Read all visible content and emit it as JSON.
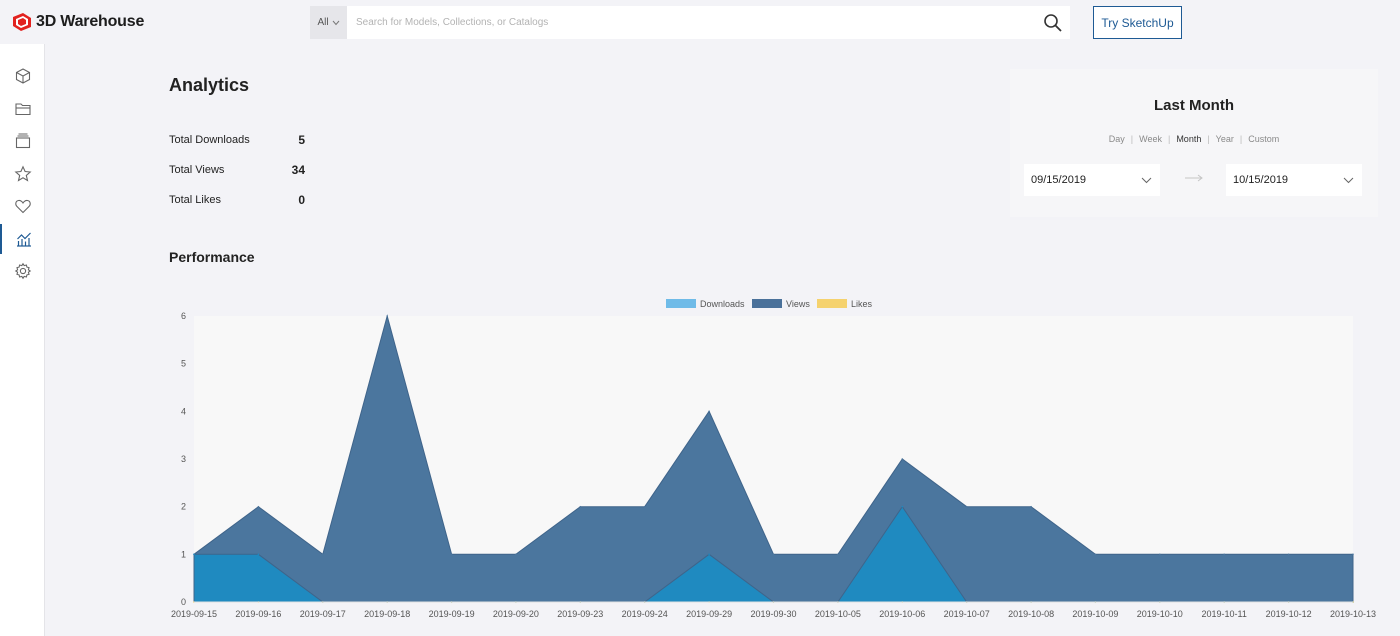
{
  "app": {
    "name": "3D Warehouse"
  },
  "search": {
    "scope": "All",
    "placeholder": "Search for Models, Collections, or Catalogs"
  },
  "header": {
    "cta_label": "Try SketchUp"
  },
  "sidebar": {
    "items": [
      {
        "icon": "cube-icon"
      },
      {
        "icon": "folder-icon"
      },
      {
        "icon": "catalog-icon"
      },
      {
        "icon": "star-icon"
      },
      {
        "icon": "heart-icon"
      },
      {
        "icon": "analytics-icon",
        "active": true
      },
      {
        "icon": "gear-icon"
      }
    ]
  },
  "analytics": {
    "title": "Analytics",
    "stats": [
      {
        "label": "Total Downloads",
        "value": "5"
      },
      {
        "label": "Total Views",
        "value": "34"
      },
      {
        "label": "Total Likes",
        "value": "0"
      }
    ]
  },
  "range": {
    "title": "Last Month",
    "periods": [
      "Day",
      "Week",
      "Month",
      "Year",
      "Custom"
    ],
    "active_period": "Month",
    "start_date": "09/15/2019",
    "end_date": "10/15/2019"
  },
  "performance": {
    "title": "Performance"
  },
  "chart_data": {
    "type": "area",
    "legend_position": "top",
    "grid": false,
    "ylim": [
      0,
      6
    ],
    "yticks": [
      0,
      1,
      2,
      3,
      4,
      5,
      6
    ],
    "categories": [
      "2019-09-15",
      "2019-09-16",
      "2019-09-17",
      "2019-09-18",
      "2019-09-19",
      "2019-09-20",
      "2019-09-23",
      "2019-09-24",
      "2019-09-29",
      "2019-09-30",
      "2019-10-05",
      "2019-10-06",
      "2019-10-07",
      "2019-10-08",
      "2019-10-09",
      "2019-10-10",
      "2019-10-11",
      "2019-10-12",
      "2019-10-13"
    ],
    "series": [
      {
        "name": "Downloads",
        "color": "#6fbbe8",
        "fill": "#1f8ac0",
        "values": [
          1,
          1,
          0,
          0,
          0,
          0,
          0,
          0,
          1,
          0,
          0,
          2,
          0,
          0,
          0,
          0,
          0,
          0,
          0
        ]
      },
      {
        "name": "Views",
        "color": "#4a719a",
        "fill": "#4b769e",
        "values": [
          1,
          2,
          1,
          6,
          1,
          1,
          2,
          2,
          4,
          1,
          1,
          3,
          2,
          2,
          1,
          1,
          1,
          1,
          1
        ]
      },
      {
        "name": "Likes",
        "color": "#f5d26e",
        "fill": "#f5d26e",
        "values": [
          0,
          0,
          0,
          0,
          0,
          0,
          0,
          0,
          0,
          0,
          0,
          0,
          0,
          0,
          0,
          0,
          0,
          0,
          0
        ]
      }
    ]
  }
}
